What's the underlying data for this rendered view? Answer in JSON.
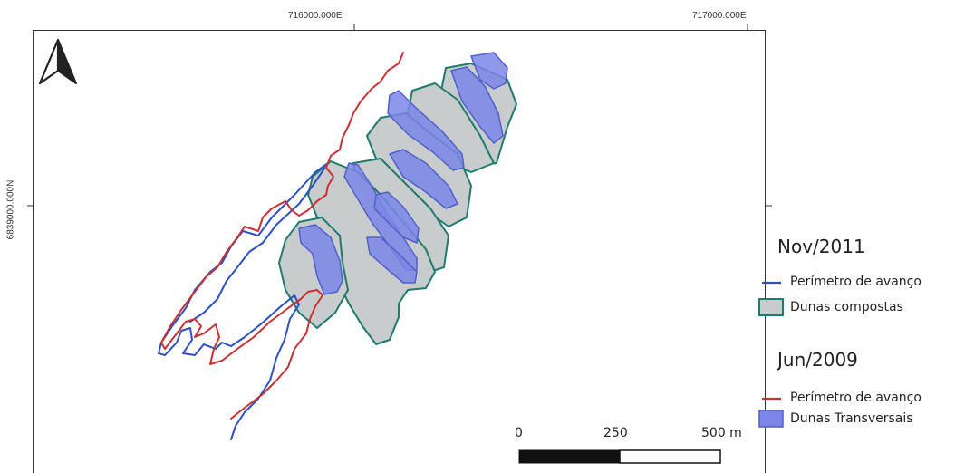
{
  "coordinates": {
    "easting_1": "716000.000E",
    "easting_2": "717000.000E",
    "northing_1": "6839000.000N"
  },
  "north_arrow": {
    "icon": "north-arrow-icon"
  },
  "legend": {
    "group_1": {
      "title": "Nov/2011",
      "items": [
        {
          "label": "Perímetro de avanço",
          "symbol": "line",
          "color": "#2d4fc8"
        },
        {
          "label": "Dunas compostas",
          "symbol": "polygon",
          "fill": "#c8cccc",
          "stroke": "#1f7a70"
        }
      ]
    },
    "group_2": {
      "title": "Jun/2009",
      "items": [
        {
          "label": "Perímetro de avanço",
          "symbol": "line",
          "color": "#c83232"
        },
        {
          "label": "Dunas Transversais",
          "symbol": "polygon",
          "fill": "#7b86e8",
          "stroke": "#5060c8"
        }
      ]
    }
  },
  "scale_bar": {
    "labels": [
      "0",
      "250",
      "500 m"
    ]
  },
  "colors": {
    "composite_fill": "#c8cccc",
    "composite_stroke": "#1f7a70",
    "transverse_fill": "#7b86e8",
    "blue_line": "#2d4fc8",
    "red_line": "#c83232"
  }
}
